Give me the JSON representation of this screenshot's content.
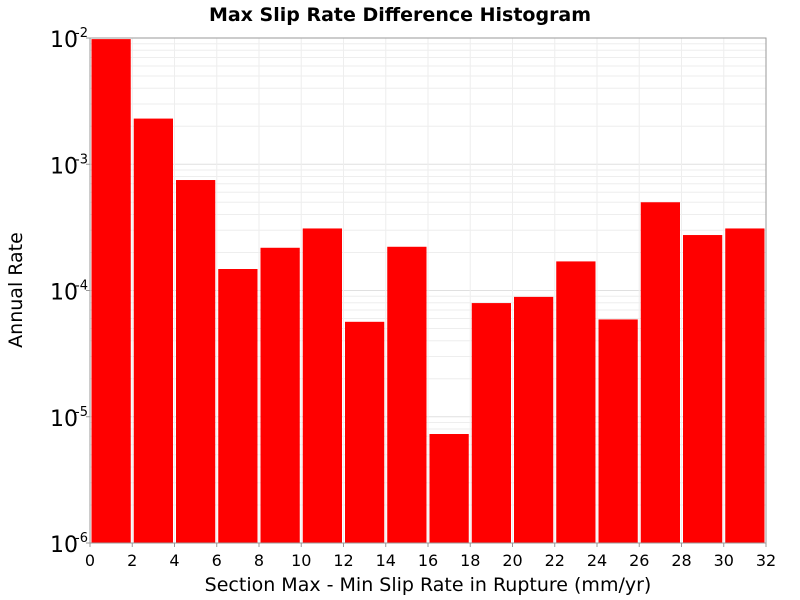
{
  "chart_data": {
    "type": "bar",
    "title": "Max Slip Rate Difference Histogram",
    "xlabel": "Section Max - Min Slip Rate in Rupture (mm/yr)",
    "ylabel": "Annual Rate",
    "y_scale": "log",
    "xlim": [
      0,
      32
    ],
    "ylim": [
      1e-06,
      0.01
    ],
    "bin_width": 2,
    "x_ticks": [
      "0",
      "2",
      "4",
      "6",
      "8",
      "10",
      "12",
      "14",
      "16",
      "18",
      "20",
      "22",
      "24",
      "26",
      "28",
      "30",
      "32"
    ],
    "y_ticks": [
      {
        "base": "10",
        "exp": "-6"
      },
      {
        "base": "10",
        "exp": "-5"
      },
      {
        "base": "10",
        "exp": "-4"
      },
      {
        "base": "10",
        "exp": "-3"
      },
      {
        "base": "10",
        "exp": "-2"
      }
    ],
    "bar_color": "#ff0000",
    "grid": true,
    "bins": [
      {
        "x_start": 0,
        "x_end": 2,
        "value": 0.0098
      },
      {
        "x_start": 2,
        "x_end": 4,
        "value": 0.0023
      },
      {
        "x_start": 4,
        "x_end": 6,
        "value": 0.00075
      },
      {
        "x_start": 6,
        "x_end": 8,
        "value": 0.000148
      },
      {
        "x_start": 8,
        "x_end": 10,
        "value": 0.000218
      },
      {
        "x_start": 10,
        "x_end": 12,
        "value": 0.00031
      },
      {
        "x_start": 12,
        "x_end": 14,
        "value": 5.65e-05
      },
      {
        "x_start": 14,
        "x_end": 16,
        "value": 0.000222
      },
      {
        "x_start": 16,
        "x_end": 18,
        "value": 7.3e-06
      },
      {
        "x_start": 18,
        "x_end": 20,
        "value": 7.95e-05
      },
      {
        "x_start": 20,
        "x_end": 22,
        "value": 8.9e-05
      },
      {
        "x_start": 22,
        "x_end": 24,
        "value": 0.00017
      },
      {
        "x_start": 24,
        "x_end": 26,
        "value": 5.9e-05
      },
      {
        "x_start": 26,
        "x_end": 28,
        "value": 0.0005
      },
      {
        "x_start": 28,
        "x_end": 30,
        "value": 0.000275
      },
      {
        "x_start": 30,
        "x_end": 32,
        "value": 0.00031
      }
    ]
  }
}
